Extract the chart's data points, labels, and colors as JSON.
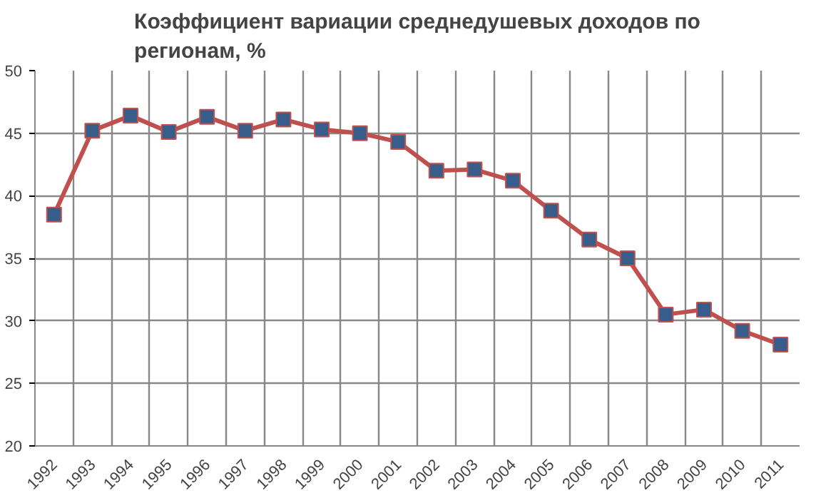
{
  "chart_data": {
    "type": "line",
    "title": "Коэффициент вариации среднедушевых доходов по\nрегионам, %",
    "categories": [
      "1992",
      "1993",
      "1994",
      "1995",
      "1996",
      "1997",
      "1998",
      "1999",
      "2000",
      "2001",
      "2002",
      "2003",
      "2004",
      "2005",
      "2006",
      "2007",
      "2008",
      "2009",
      "2010",
      "2011"
    ],
    "series": [
      {
        "color": "#c0504d",
        "values": [
          38.5,
          45.2,
          46.4,
          45.1,
          46.3,
          45.2,
          46.1,
          45.3,
          45.0,
          44.3,
          42.0,
          42.1,
          41.2,
          38.8,
          36.5,
          35.0,
          30.5,
          30.9,
          29.2,
          28.1
        ]
      }
    ],
    "ylim": [
      20,
      50
    ],
    "yticks": [
      20,
      25,
      30,
      35,
      40,
      45,
      50
    ],
    "grid": true,
    "marker": "square",
    "line_style": "solid"
  }
}
